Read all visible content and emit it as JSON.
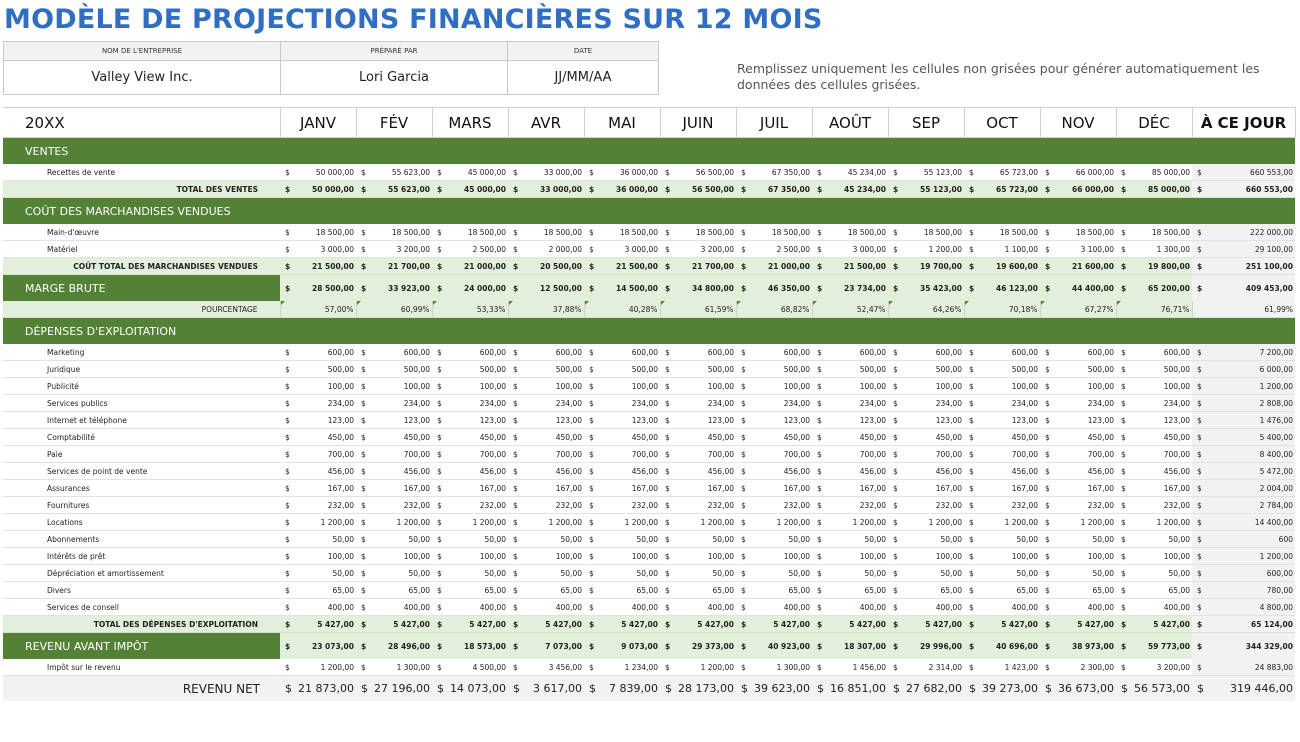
{
  "title": "MODÈLE DE PROJECTIONS FINANCIÈRES SUR 12 MOIS",
  "info": {
    "company_label": "NOM DE L'ENTREPRISE",
    "prepared_label": "PRÉPARÉ PAR",
    "date_label": "DATE",
    "company": "Valley View Inc.",
    "prepared": "Lori Garcia",
    "date": "JJ/MM/AA"
  },
  "note": "Remplissez uniquement les cellules non grisées pour générer automatiquement les données des cellules grisées.",
  "colors": {
    "green": "#538135",
    "light_green": "#e2efda",
    "title_blue": "#2f6ec1",
    "grey": "#f2f2f2"
  },
  "header": {
    "year": "20XX",
    "months": [
      "JANV",
      "FÉV",
      "MARS",
      "AVR",
      "MAI",
      "JUIN",
      "JUIL",
      "AOÛT",
      "SEP",
      "OCT",
      "NOV",
      "DÉC"
    ],
    "ytd": "À CE JOUR"
  },
  "currency": "$",
  "rows": [
    {
      "type": "section",
      "label": "VENTES"
    },
    {
      "type": "item",
      "label": "Recettes de vente",
      "values": [
        "50 000,00",
        "55 623,00",
        "45 000,00",
        "33 000,00",
        "36 000,00",
        "56 500,00",
        "67 350,00",
        "45 234,00",
        "55 123,00",
        "65 723,00",
        "66 000,00",
        "85 000,00"
      ],
      "ytd": "660 553,00"
    },
    {
      "type": "total",
      "label": "TOTAL DES VENTES",
      "values": [
        "50 000,00",
        "55 623,00",
        "45 000,00",
        "33 000,00",
        "36 000,00",
        "56 500,00",
        "67 350,00",
        "45 234,00",
        "55 123,00",
        "65 723,00",
        "66 000,00",
        "85 000,00"
      ],
      "ytd": "660 553,00"
    },
    {
      "type": "section",
      "label": "COÛT DES MARCHANDISES VENDUES"
    },
    {
      "type": "item",
      "label": "Main-d'œuvre",
      "values": [
        "18 500,00",
        "18 500,00",
        "18 500,00",
        "18 500,00",
        "18 500,00",
        "18 500,00",
        "18 500,00",
        "18 500,00",
        "18 500,00",
        "18 500,00",
        "18 500,00",
        "18 500,00"
      ],
      "ytd": "222 000,00"
    },
    {
      "type": "item",
      "label": "Matériel",
      "values": [
        "3 000,00",
        "3 200,00",
        "2 500,00",
        "2 000,00",
        "3 000,00",
        "3 200,00",
        "2 500,00",
        "3 000,00",
        "1 200,00",
        "1 100,00",
        "3 100,00",
        "1 300,00"
      ],
      "ytd": "29 100,00"
    },
    {
      "type": "total",
      "label": "COÛT TOTAL DES MARCHANDISES VENDUES",
      "values": [
        "21 500,00",
        "21 700,00",
        "21 000,00",
        "20 500,00",
        "21 500,00",
        "21 700,00",
        "21 000,00",
        "21 500,00",
        "19 700,00",
        "19 600,00",
        "21 600,00",
        "19 800,00"
      ],
      "ytd": "251 100,00"
    },
    {
      "type": "margin",
      "label": "MARGE BRUTE",
      "values": [
        "28 500,00",
        "33 923,00",
        "24 000,00",
        "12 500,00",
        "14 500,00",
        "34 800,00",
        "46 350,00",
        "23 734,00",
        "35 423,00",
        "46 123,00",
        "44 400,00",
        "65 200,00"
      ],
      "ytd": "409 453,00"
    },
    {
      "type": "percent",
      "label": "POURCENTAGE",
      "values": [
        "57,00%",
        "60,99%",
        "53,33%",
        "37,88%",
        "40,28%",
        "61,59%",
        "68,82%",
        "52,47%",
        "64,26%",
        "70,18%",
        "67,27%",
        "76,71%"
      ],
      "ytd": "61,99%"
    },
    {
      "type": "section",
      "label": "DÉPENSES D'EXPLOITATION"
    },
    {
      "type": "item",
      "label": "Marketing",
      "values": [
        "600,00",
        "600,00",
        "600,00",
        "600,00",
        "600,00",
        "600,00",
        "600,00",
        "600,00",
        "600,00",
        "600,00",
        "600,00",
        "600,00"
      ],
      "ytd": "7 200,00"
    },
    {
      "type": "item",
      "label": "Juridique",
      "values": [
        "500,00",
        "500,00",
        "500,00",
        "500,00",
        "500,00",
        "500,00",
        "500,00",
        "500,00",
        "500,00",
        "500,00",
        "500,00",
        "500,00"
      ],
      "ytd": "6 000,00"
    },
    {
      "type": "item",
      "label": "Publicité",
      "values": [
        "100,00",
        "100,00",
        "100,00",
        "100,00",
        "100,00",
        "100,00",
        "100,00",
        "100,00",
        "100,00",
        "100,00",
        "100,00",
        "100,00"
      ],
      "ytd": "1 200,00"
    },
    {
      "type": "item",
      "label": "Services publics",
      "values": [
        "234,00",
        "234,00",
        "234,00",
        "234,00",
        "234,00",
        "234,00",
        "234,00",
        "234,00",
        "234,00",
        "234,00",
        "234,00",
        "234,00"
      ],
      "ytd": "2 808,00"
    },
    {
      "type": "item",
      "label": "Internet et téléphone",
      "values": [
        "123,00",
        "123,00",
        "123,00",
        "123,00",
        "123,00",
        "123,00",
        "123,00",
        "123,00",
        "123,00",
        "123,00",
        "123,00",
        "123,00"
      ],
      "ytd": "1 476,00"
    },
    {
      "type": "item",
      "label": "Comptabilité",
      "values": [
        "450,00",
        "450,00",
        "450,00",
        "450,00",
        "450,00",
        "450,00",
        "450,00",
        "450,00",
        "450,00",
        "450,00",
        "450,00",
        "450,00"
      ],
      "ytd": "5 400,00"
    },
    {
      "type": "item",
      "label": "Paie",
      "values": [
        "700,00",
        "700,00",
        "700,00",
        "700,00",
        "700,00",
        "700,00",
        "700,00",
        "700,00",
        "700,00",
        "700,00",
        "700,00",
        "700,00"
      ],
      "ytd": "8 400,00"
    },
    {
      "type": "item",
      "label": "Services de point de vente",
      "values": [
        "456,00",
        "456,00",
        "456,00",
        "456,00",
        "456,00",
        "456,00",
        "456,00",
        "456,00",
        "456,00",
        "456,00",
        "456,00",
        "456,00"
      ],
      "ytd": "5 472,00"
    },
    {
      "type": "item",
      "label": "Assurances",
      "values": [
        "167,00",
        "167,00",
        "167,00",
        "167,00",
        "167,00",
        "167,00",
        "167,00",
        "167,00",
        "167,00",
        "167,00",
        "167,00",
        "167,00"
      ],
      "ytd": "2 004,00"
    },
    {
      "type": "item",
      "label": "Fournitures",
      "values": [
        "232,00",
        "232,00",
        "232,00",
        "232,00",
        "232,00",
        "232,00",
        "232,00",
        "232,00",
        "232,00",
        "232,00",
        "232,00",
        "232,00"
      ],
      "ytd": "2 784,00"
    },
    {
      "type": "item",
      "label": "Locations",
      "values": [
        "1 200,00",
        "1 200,00",
        "1 200,00",
        "1 200,00",
        "1 200,00",
        "1 200,00",
        "1 200,00",
        "1 200,00",
        "1 200,00",
        "1 200,00",
        "1 200,00",
        "1 200,00"
      ],
      "ytd": "14 400,00"
    },
    {
      "type": "item",
      "label": "Abonnements",
      "values": [
        "50,00",
        "50,00",
        "50,00",
        "50,00",
        "50,00",
        "50,00",
        "50,00",
        "50,00",
        "50,00",
        "50,00",
        "50,00",
        "50,00"
      ],
      "ytd": "600"
    },
    {
      "type": "item",
      "label": "Intérêts de prêt",
      "values": [
        "100,00",
        "100,00",
        "100,00",
        "100,00",
        "100,00",
        "100,00",
        "100,00",
        "100,00",
        "100,00",
        "100,00",
        "100,00",
        "100,00"
      ],
      "ytd": "1 200,00"
    },
    {
      "type": "item",
      "label": "Dépréciation et amortissement",
      "values": [
        "50,00",
        "50,00",
        "50,00",
        "50,00",
        "50,00",
        "50,00",
        "50,00",
        "50,00",
        "50,00",
        "50,00",
        "50,00",
        "50,00"
      ],
      "ytd": "600,00"
    },
    {
      "type": "item",
      "label": "Divers",
      "values": [
        "65,00",
        "65,00",
        "65,00",
        "65,00",
        "65,00",
        "65,00",
        "65,00",
        "65,00",
        "65,00",
        "65,00",
        "65,00",
        "65,00"
      ],
      "ytd": "780,00"
    },
    {
      "type": "item",
      "label": "Services de conseil",
      "values": [
        "400,00",
        "400,00",
        "400,00",
        "400,00",
        "400,00",
        "400,00",
        "400,00",
        "400,00",
        "400,00",
        "400,00",
        "400,00",
        "400,00"
      ],
      "ytd": "4 800,00"
    },
    {
      "type": "total",
      "label": "TOTAL DES DÉPENSES D'EXPLOITATION",
      "values": [
        "5 427,00",
        "5 427,00",
        "5 427,00",
        "5 427,00",
        "5 427,00",
        "5 427,00",
        "5 427,00",
        "5 427,00",
        "5 427,00",
        "5 427,00",
        "5 427,00",
        "5 427,00"
      ],
      "ytd": "65 124,00"
    },
    {
      "type": "margin",
      "label": "REVENU AVANT IMPÔT",
      "values": [
        "23 073,00",
        "28 496,00",
        "18 573,00",
        "7 073,00",
        "9 073,00",
        "29 373,00",
        "40 923,00",
        "18 307,00",
        "29 996,00",
        "40 696,00",
        "38 973,00",
        "59 773,00"
      ],
      "ytd": "344 329,00"
    },
    {
      "type": "item",
      "label": "Impôt sur le revenu",
      "values": [
        "1 200,00",
        "1 300,00",
        "4 500,00",
        "3 456,00",
        "1 234,00",
        "1 200,00",
        "1 300,00",
        "1 456,00",
        "2 314,00",
        "1 423,00",
        "2 300,00",
        "3 200,00"
      ],
      "ytd": "24 883,00"
    },
    {
      "type": "net",
      "label": "REVENU NET",
      "values": [
        "21 873,00",
        "27 196,00",
        "14 073,00",
        "3 617,00",
        "7 839,00",
        "28 173,00",
        "39 623,00",
        "16 851,00",
        "27 682,00",
        "39 273,00",
        "36 673,00",
        "56 573,00"
      ],
      "ytd": "319 446,00"
    }
  ]
}
